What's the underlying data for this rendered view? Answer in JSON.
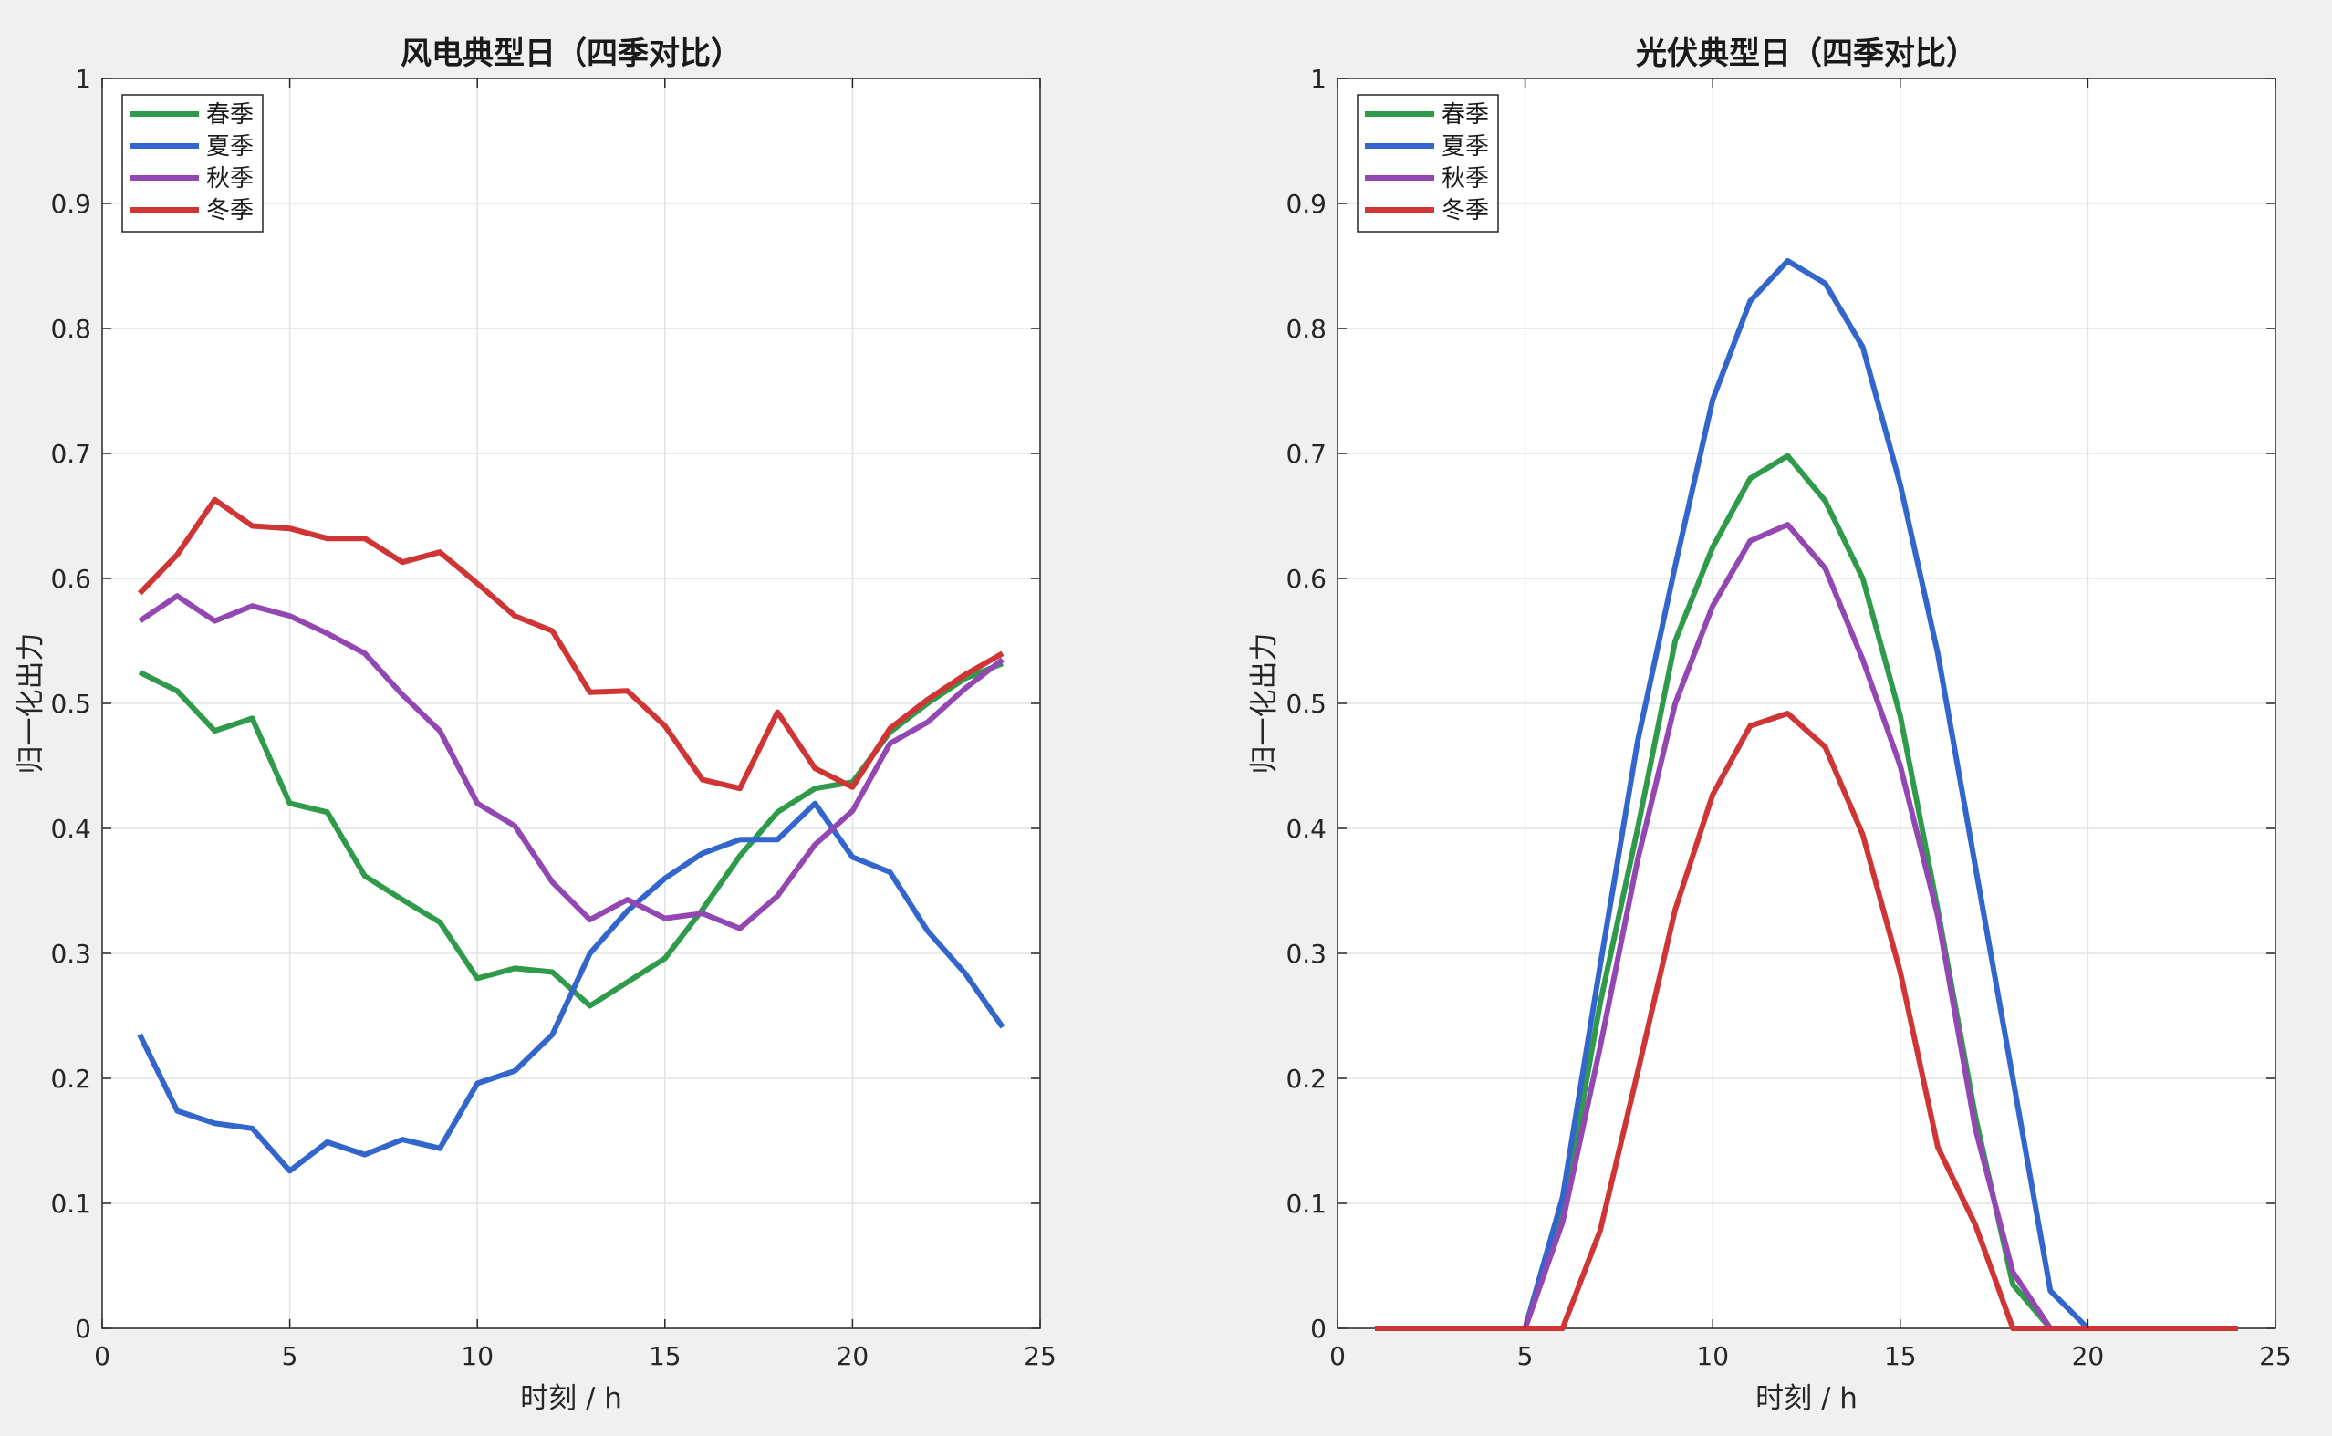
{
  "chart_data": [
    {
      "type": "line",
      "title": "风电典型日（四季对比）",
      "xlabel": "时刻 / h",
      "ylabel": "归一化出力",
      "xlim": [
        0,
        25
      ],
      "ylim": [
        0,
        1
      ],
      "xticks": [
        "0",
        "5",
        "10",
        "15",
        "20",
        "25"
      ],
      "yticks": [
        "0",
        "0.1",
        "0.2",
        "0.3",
        "0.4",
        "0.5",
        "0.6",
        "0.7",
        "0.8",
        "0.9",
        "1"
      ],
      "grid": true,
      "legend_position": "top-left",
      "x": [
        1,
        2,
        3,
        4,
        5,
        6,
        7,
        8,
        9,
        10,
        11,
        12,
        13,
        14,
        15,
        16,
        17,
        18,
        19,
        20,
        21,
        22,
        23,
        24
      ],
      "series": [
        {
          "name": "春季",
          "color": "#2e9a4a",
          "values": [
            0.525,
            0.51,
            0.478,
            0.488,
            0.42,
            0.413,
            0.362,
            0.343,
            0.325,
            0.28,
            0.288,
            0.285,
            0.258,
            0.277,
            0.296,
            0.335,
            0.378,
            0.413,
            0.432,
            0.437,
            0.477,
            0.5,
            0.52,
            0.532
          ]
        },
        {
          "name": "夏季",
          "color": "#3366cc",
          "values": [
            0.235,
            0.174,
            0.164,
            0.16,
            0.126,
            0.149,
            0.139,
            0.151,
            0.144,
            0.196,
            0.206,
            0.235,
            0.3,
            0.334,
            0.36,
            0.38,
            0.391,
            0.391,
            0.42,
            0.377,
            0.365,
            0.318,
            0.284,
            0.241
          ]
        },
        {
          "name": "秋季",
          "color": "#9347b3",
          "values": [
            0.566,
            0.586,
            0.566,
            0.578,
            0.57,
            0.556,
            0.54,
            0.507,
            0.478,
            0.42,
            0.402,
            0.357,
            0.327,
            0.343,
            0.328,
            0.332,
            0.32,
            0.346,
            0.387,
            0.414,
            0.468,
            0.485,
            0.512,
            0.535
          ]
        },
        {
          "name": "冬季",
          "color": "#d03535",
          "values": [
            0.588,
            0.619,
            0.663,
            0.642,
            0.64,
            0.632,
            0.632,
            0.613,
            0.621,
            0.596,
            0.57,
            0.558,
            0.509,
            0.51,
            0.482,
            0.439,
            0.432,
            0.493,
            0.448,
            0.433,
            0.48,
            0.503,
            0.523,
            0.54
          ]
        }
      ]
    },
    {
      "type": "line",
      "title": "光伏典型日（四季对比）",
      "xlabel": "时刻 / h",
      "ylabel": "归一化出力",
      "xlim": [
        0,
        25
      ],
      "ylim": [
        0,
        1
      ],
      "xticks": [
        "0",
        "5",
        "10",
        "15",
        "20",
        "25"
      ],
      "yticks": [
        "0",
        "0.1",
        "0.2",
        "0.3",
        "0.4",
        "0.5",
        "0.6",
        "0.7",
        "0.8",
        "0.9",
        "1"
      ],
      "grid": true,
      "legend_position": "top-left",
      "x": [
        1,
        2,
        3,
        4,
        5,
        6,
        7,
        8,
        9,
        10,
        11,
        12,
        13,
        14,
        15,
        16,
        17,
        18,
        19,
        20,
        21,
        22,
        23,
        24
      ],
      "series": [
        {
          "name": "春季",
          "color": "#2e9a4a",
          "values": [
            0,
            0,
            0,
            0,
            0,
            0.09,
            0.26,
            0.4,
            0.55,
            0.625,
            0.68,
            0.698,
            0.662,
            0.6,
            0.49,
            0.335,
            0.17,
            0.035,
            0,
            0,
            0,
            0,
            0,
            0
          ]
        },
        {
          "name": "夏季",
          "color": "#3366cc",
          "values": [
            0,
            0,
            0,
            0,
            0,
            0.105,
            0.29,
            0.47,
            0.61,
            0.743,
            0.822,
            0.854,
            0.836,
            0.785,
            0.675,
            0.54,
            0.37,
            0.2,
            0.03,
            0,
            0,
            0,
            0,
            0
          ]
        },
        {
          "name": "秋季",
          "color": "#9347b3",
          "values": [
            0,
            0,
            0,
            0,
            0,
            0.085,
            0.225,
            0.375,
            0.5,
            0.578,
            0.63,
            0.643,
            0.608,
            0.535,
            0.45,
            0.33,
            0.16,
            0.045,
            0,
            0,
            0,
            0,
            0,
            0
          ]
        },
        {
          "name": "冬季",
          "color": "#d03535",
          "values": [
            0,
            0,
            0,
            0,
            0,
            0,
            0.078,
            0.205,
            0.335,
            0.427,
            0.482,
            0.492,
            0.465,
            0.395,
            0.285,
            0.145,
            0.083,
            0,
            0,
            0,
            0,
            0,
            0,
            0
          ]
        }
      ]
    }
  ]
}
